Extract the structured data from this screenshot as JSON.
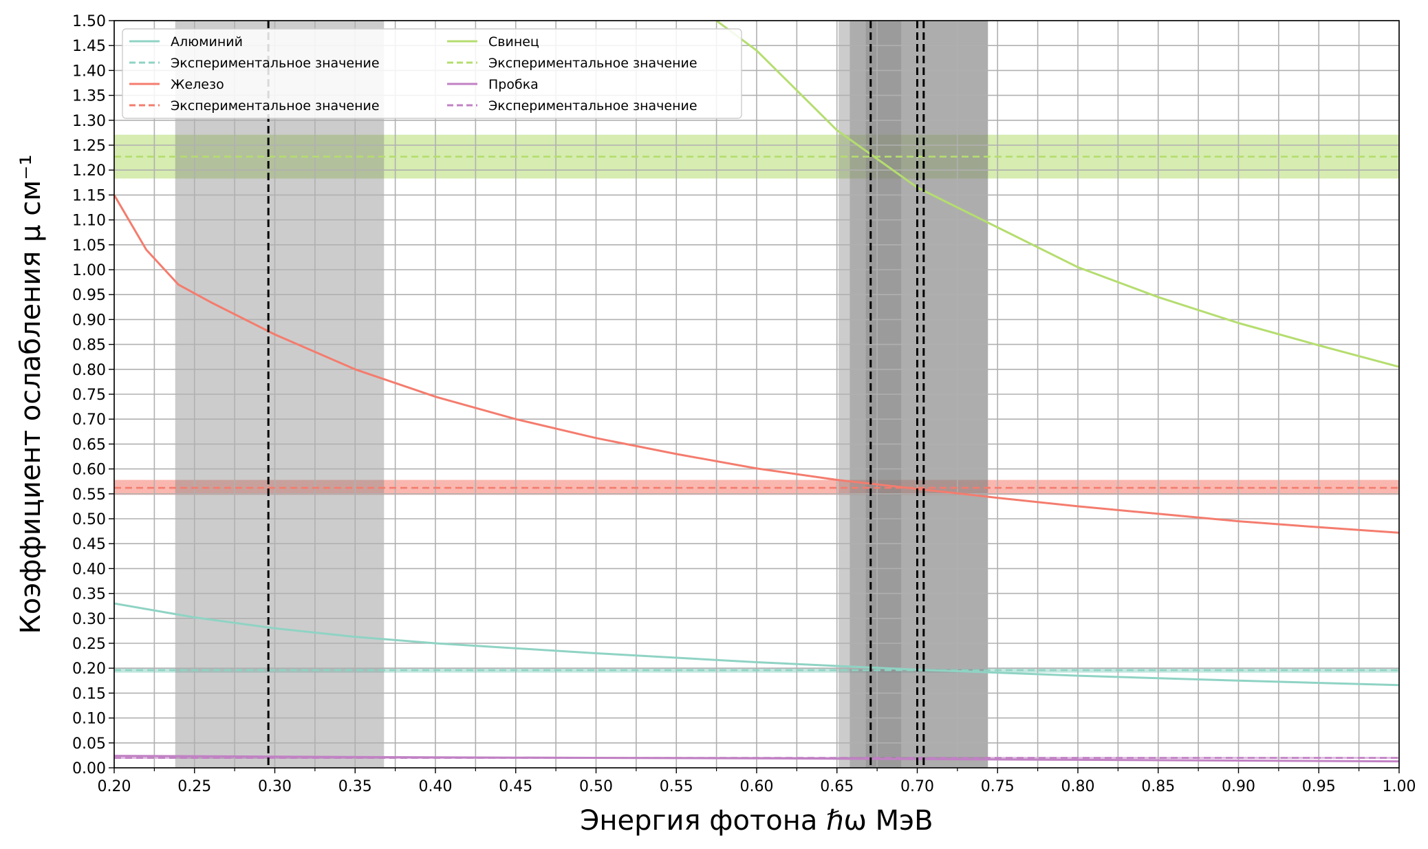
{
  "chart_data": {
    "type": "line",
    "title": "",
    "xlabel": "Энергия фотона ℏω МэВ",
    "ylabel": "Коэффициент ослабления μ см⁻¹",
    "xlim": [
      0.2,
      1.0
    ],
    "ylim": [
      0.0,
      1.5
    ],
    "grid": true,
    "legend_position": "top-left",
    "x_ticks": [
      "0.20",
      "0.25",
      "0.30",
      "0.35",
      "0.40",
      "0.45",
      "0.50",
      "0.55",
      "0.60",
      "0.65",
      "0.70",
      "0.75",
      "0.80",
      "0.85",
      "0.90",
      "0.95",
      "1.00"
    ],
    "y_ticks": [
      "0.00",
      "0.05",
      "0.10",
      "0.15",
      "0.20",
      "0.25",
      "0.30",
      "0.35",
      "0.40",
      "0.45",
      "0.50",
      "0.55",
      "0.60",
      "0.65",
      "0.70",
      "0.75",
      "0.80",
      "0.85",
      "0.90",
      "0.95",
      "1.00",
      "1.05",
      "1.10",
      "1.15",
      "1.20",
      "1.25",
      "1.30",
      "1.35",
      "1.40",
      "1.45",
      "1.50"
    ],
    "series": [
      {
        "name": "Алюминий",
        "color": "#8fd3c4",
        "x": [
          0.2,
          0.25,
          0.3,
          0.35,
          0.4,
          0.5,
          0.6,
          0.7,
          0.8,
          0.9,
          1.0
        ],
        "y": [
          0.33,
          0.302,
          0.28,
          0.263,
          0.25,
          0.23,
          0.212,
          0.197,
          0.185,
          0.175,
          0.166
        ],
        "experimental": {
          "name": "Экспериментальное значение",
          "value": 0.196,
          "band": [
            0.191,
            0.201
          ]
        }
      },
      {
        "name": "Железо",
        "color": "#f47c6e",
        "x": [
          0.2,
          0.22,
          0.24,
          0.26,
          0.3,
          0.35,
          0.4,
          0.45,
          0.5,
          0.55,
          0.6,
          0.65,
          0.7,
          0.75,
          0.8,
          0.85,
          0.9,
          0.95,
          1.0
        ],
        "y": [
          1.15,
          1.04,
          0.97,
          0.935,
          0.87,
          0.8,
          0.745,
          0.7,
          0.662,
          0.63,
          0.601,
          0.578,
          0.56,
          0.542,
          0.525,
          0.51,
          0.495,
          0.483,
          0.472
        ],
        "experimental": {
          "name": "Экспериментальное значение",
          "value": 0.562,
          "band": [
            0.548,
            0.578
          ]
        }
      },
      {
        "name": "Свинец",
        "color": "#b5dd6f",
        "x": [
          0.575,
          0.6,
          0.65,
          0.7,
          0.75,
          0.8,
          0.85,
          0.9,
          0.95,
          1.0
        ],
        "y": [
          1.5,
          1.44,
          1.28,
          1.165,
          1.085,
          1.005,
          0.945,
          0.893,
          0.848,
          0.805
        ],
        "experimental": {
          "name": "Экспериментальное значение",
          "value": 1.227,
          "band": [
            1.183,
            1.271
          ]
        }
      },
      {
        "name": "Пробка",
        "color": "#c181c4",
        "x": [
          0.2,
          0.4,
          0.6,
          0.8,
          1.0
        ],
        "y": [
          0.024,
          0.021,
          0.019,
          0.016,
          0.013
        ],
        "experimental": {
          "name": "Экспериментальное значение",
          "value": 0.02,
          "band": [
            0.018,
            0.022
          ]
        }
      }
    ],
    "vertical_lines": [
      {
        "x": 0.296,
        "band": [
          0.238,
          0.368
        ]
      },
      {
        "x": 0.671,
        "band": [
          0.651,
          0.69
        ]
      },
      {
        "x": 0.7,
        "band": [
          0.658,
          0.744
        ]
      },
      {
        "x": 0.704,
        "band": [
          0.668,
          0.744
        ]
      }
    ]
  }
}
